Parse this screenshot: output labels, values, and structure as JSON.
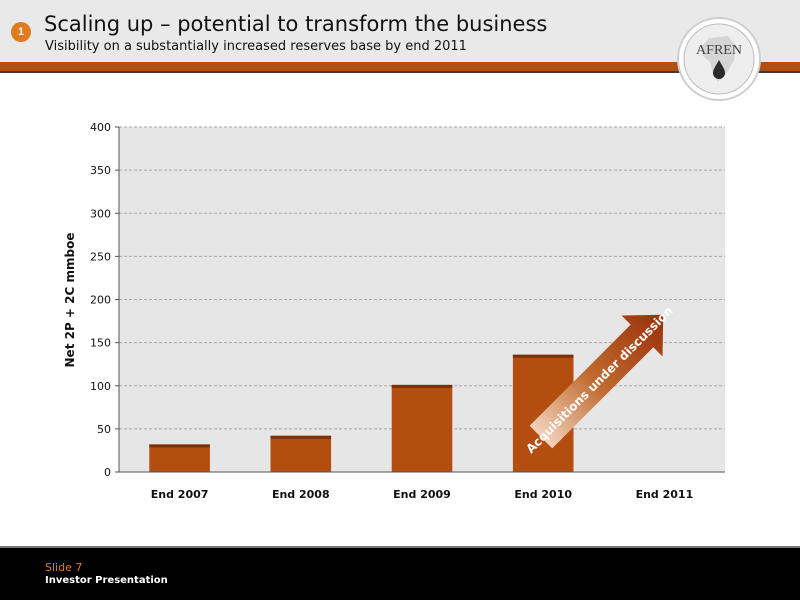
{
  "slide": {
    "number": "1",
    "title": "Scaling up – potential to transform the business",
    "subtitle": "Visibility on a substantially increased reserves base by end 2011",
    "logo_text": "AFREN",
    "annotation": "Acquisitions under discussion"
  },
  "footer": {
    "slide_label": "Slide 7",
    "presentation": "Investor Presentation"
  },
  "colors": {
    "accent": "#e07b1f",
    "bar": "#b34d10",
    "plot_bg": "#e6e6e6"
  },
  "chart_data": {
    "type": "bar",
    "categories": [
      "End 2007",
      "End 2008",
      "End 2009",
      "End 2010",
      "End 2011"
    ],
    "values": [
      32,
      42,
      101,
      136,
      null
    ],
    "title": "",
    "xlabel": "",
    "ylabel": "Net 2P + 2C mmboe",
    "ylim": [
      0,
      400
    ],
    "yticks": [
      0,
      50,
      100,
      150,
      200,
      250,
      300,
      350,
      400
    ],
    "grid": true,
    "legend": "none"
  }
}
